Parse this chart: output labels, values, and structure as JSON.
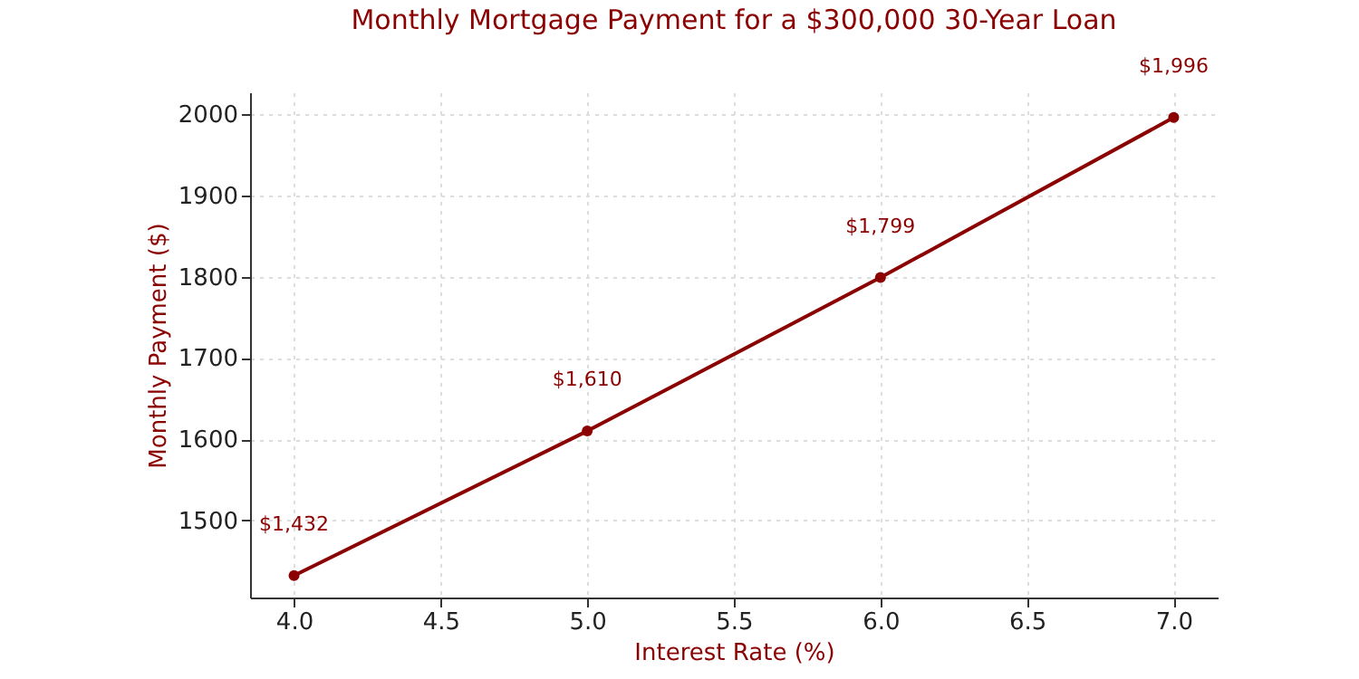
{
  "chart_data": {
    "type": "line",
    "title": "Monthly Mortgage Payment for a $300,000 30-Year Loan",
    "xlabel": "Interest Rate (%)",
    "ylabel": "Monthly Payment ($)",
    "x": [
      4.0,
      5.0,
      6.0,
      7.0
    ],
    "series": [
      {
        "color": "#8b0000",
        "values": [
          1432,
          1610,
          1799,
          1996
        ],
        "value_labels": [
          "$1,432",
          "$1,610",
          "$1,799",
          "$1,996"
        ]
      }
    ],
    "xlim": [
      3.85,
      7.15
    ],
    "xticks": [
      {
        "value": 4,
        "label": "4.0"
      },
      {
        "value": 4.5,
        "label": "4.5"
      },
      {
        "value": 5,
        "label": "5.0"
      },
      {
        "value": 5.5,
        "label": "5.5"
      },
      {
        "value": 6,
        "label": "6.0"
      },
      {
        "value": 6.5,
        "label": "6.5"
      },
      {
        "value": 7,
        "label": "7.0"
      }
    ],
    "ylim": [
      1405,
      2027
    ],
    "yticks": [
      1500,
      1600,
      1700,
      1800,
      1900,
      2000
    ],
    "grid": true,
    "marker": "circle",
    "line_style": "solid"
  }
}
